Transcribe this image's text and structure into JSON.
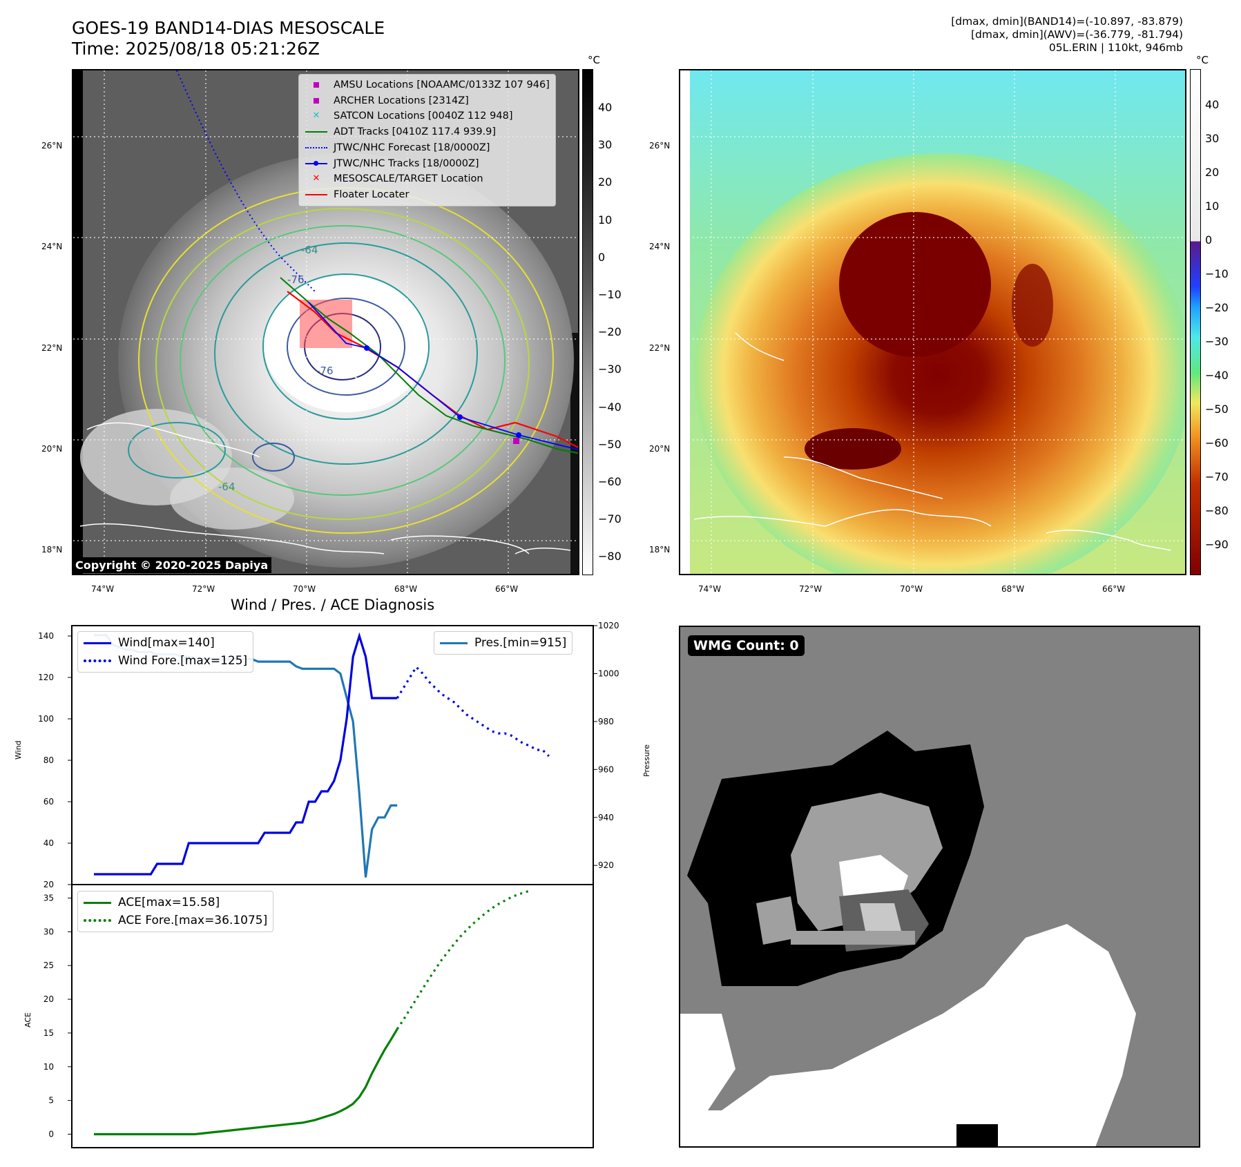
{
  "header": {
    "title": "GOES-19 BAND14-DIAS MESOSCALE",
    "time": "Time: 2025/08/18 05:21:26Z",
    "info_line1": "[dmax, dmin](BAND14)=(-10.897, -83.879)",
    "info_line2": "[dmax, dmin](AWV)=(-36.779, -81.794)",
    "info_line3": "05L.ERIN | 110kt, 946mb"
  },
  "map_axes": {
    "lat_ticks": [
      "26°N",
      "24°N",
      "22°N",
      "20°N",
      "18°N"
    ],
    "lon_ticks_left": [
      "74°W",
      "72°W",
      "70°W",
      "68°W",
      "66°W"
    ],
    "lon_ticks_right": [
      "74°W",
      "72°W",
      "70°W",
      "68°W",
      "66°W"
    ]
  },
  "colorbar_left": {
    "unit": "°C",
    "ticks": [
      "40",
      "30",
      "20",
      "10",
      "0",
      "−10",
      "−20",
      "−30",
      "−40",
      "−50",
      "−60",
      "−70",
      "−80"
    ]
  },
  "colorbar_right": {
    "unit": "°C",
    "ticks": [
      "40",
      "30",
      "20",
      "10",
      "0",
      "−10",
      "−20",
      "−30",
      "−40",
      "−50",
      "−60",
      "−70",
      "−80",
      "−90"
    ]
  },
  "map_legend": [
    {
      "label": "AMSU Locations [NOAAMC/0133Z 107 946]",
      "symbol": "square",
      "color": "#c000c0"
    },
    {
      "label": "ARCHER Locations [2314Z]",
      "symbol": "square",
      "color": "#c000c0"
    },
    {
      "label": "SATCON Locations [0040Z 112 948]",
      "symbol": "x",
      "color": "#17becf"
    },
    {
      "label": "ADT Tracks [0410Z 117.4 939.9]",
      "symbol": "line",
      "color": "#008000"
    },
    {
      "label": "JTWC/NHC Forecast [18/0000Z]",
      "symbol": "dotted",
      "color": "#0000ff"
    },
    {
      "label": "JTWC/NHC Tracks [18/0000Z]",
      "symbol": "line-dot",
      "color": "#0000ff"
    },
    {
      "label": "MESOSCALE/TARGET Location",
      "symbol": "x",
      "color": "#ff0000"
    },
    {
      "label": "Floater Locater",
      "symbol": "line",
      "color": "#ff0000"
    }
  ],
  "contour_labels": [
    "-64",
    "-76",
    "-76",
    "-64"
  ],
  "copyright": "Copyright © 2020-2025 Dapiya",
  "wmg_label": "WMG Count: 0",
  "diagnosis_title": "Wind / Pres. / ACE Diagnosis",
  "colors": {
    "wind": "#0000e0",
    "pressure": "#1f77b4",
    "ace": "#008000"
  },
  "chart_data": [
    {
      "type": "line",
      "title": "Wind / Pres. / ACE Diagnosis",
      "ylabel": "Wind",
      "ylim": [
        20,
        145
      ],
      "y_ticks": [
        "140",
        "120",
        "100",
        "80",
        "60",
        "40",
        "20"
      ],
      "series": [
        {
          "name": "Wind[max=140]",
          "style": "solid",
          "values": [
            25,
            25,
            25,
            25,
            25,
            25,
            25,
            25,
            25,
            25,
            30,
            30,
            30,
            30,
            30,
            40,
            40,
            40,
            40,
            40,
            40,
            40,
            40,
            40,
            40,
            40,
            40,
            45,
            45,
            45,
            45,
            45,
            50,
            50,
            60,
            60,
            65,
            65,
            70,
            80,
            100,
            130,
            140,
            130,
            110,
            110,
            110,
            110,
            110
          ]
        },
        {
          "name": "Wind Fore.[max=125]",
          "style": "dotted",
          "values": [
            null,
            null,
            null,
            null,
            null,
            null,
            null,
            null,
            null,
            null,
            null,
            null,
            null,
            null,
            null,
            null,
            null,
            null,
            null,
            null,
            null,
            null,
            null,
            null,
            null,
            null,
            null,
            null,
            null,
            null,
            null,
            null,
            null,
            null,
            null,
            null,
            null,
            null,
            null,
            null,
            null,
            null,
            null,
            null,
            null,
            null,
            null,
            null,
            110,
            115,
            120,
            125,
            122,
            118,
            115,
            112,
            110,
            108,
            105,
            102,
            100,
            98,
            96,
            94,
            93,
            93,
            92,
            90,
            88,
            87,
            85,
            85,
            82
          ]
        }
      ]
    },
    {
      "type": "line",
      "ylabel": "Pressure",
      "ylim": [
        912,
        1020
      ],
      "y_ticks": [
        "1020",
        "1000",
        "980",
        "960",
        "940",
        "920"
      ],
      "series": [
        {
          "name": "Pres.[min=915]",
          "style": "solid",
          "values": [
            1016,
            1016,
            1016,
            1012,
            1011,
            1010,
            1010,
            1009,
            1009,
            1009,
            1008,
            1008,
            1008,
            1008,
            1007,
            1007,
            1006,
            1006,
            1006,
            1006,
            1006,
            1006,
            1006,
            1006,
            1006,
            1006,
            1005,
            1005,
            1005,
            1005,
            1005,
            1005,
            1003,
            1002,
            1002,
            1002,
            1002,
            1002,
            1002,
            1000,
            990,
            980,
            950,
            915,
            935,
            940,
            940,
            945,
            945
          ]
        }
      ]
    },
    {
      "type": "line",
      "ylabel": "ACE",
      "ylim": [
        -2,
        37
      ],
      "y_ticks": [
        "35",
        "30",
        "25",
        "20",
        "15",
        "10",
        "5",
        "0"
      ],
      "series": [
        {
          "name": "ACE[max=15.58]",
          "style": "solid",
          "values": [
            0,
            0,
            0,
            0,
            0,
            0,
            0,
            0,
            0,
            0,
            0,
            0,
            0,
            0,
            0,
            0,
            0,
            0.1,
            0.2,
            0.3,
            0.4,
            0.5,
            0.6,
            0.7,
            0.8,
            0.9,
            1.0,
            1.1,
            1.2,
            1.3,
            1.4,
            1.5,
            1.6,
            1.7,
            1.9,
            2.1,
            2.4,
            2.7,
            3.0,
            3.4,
            3.9,
            4.5,
            5.5,
            7.0,
            9.0,
            10.8,
            12.5,
            14.0,
            15.58
          ]
        },
        {
          "name": "ACE Fore.[max=36.1075]",
          "style": "dotted",
          "values": [
            null,
            null,
            null,
            null,
            null,
            null,
            null,
            null,
            null,
            null,
            null,
            null,
            null,
            null,
            null,
            null,
            null,
            null,
            null,
            null,
            null,
            null,
            null,
            null,
            null,
            null,
            null,
            null,
            null,
            null,
            null,
            null,
            null,
            null,
            null,
            null,
            null,
            null,
            null,
            null,
            null,
            null,
            null,
            null,
            null,
            null,
            null,
            null,
            15.58,
            17.0,
            18.5,
            20.0,
            21.5,
            23.0,
            24.4,
            25.8,
            27.0,
            28.2,
            29.3,
            30.3,
            31.2,
            32.0,
            32.8,
            33.5,
            34.1,
            34.6,
            35.1,
            35.5,
            35.8,
            36.1
          ]
        }
      ]
    }
  ]
}
